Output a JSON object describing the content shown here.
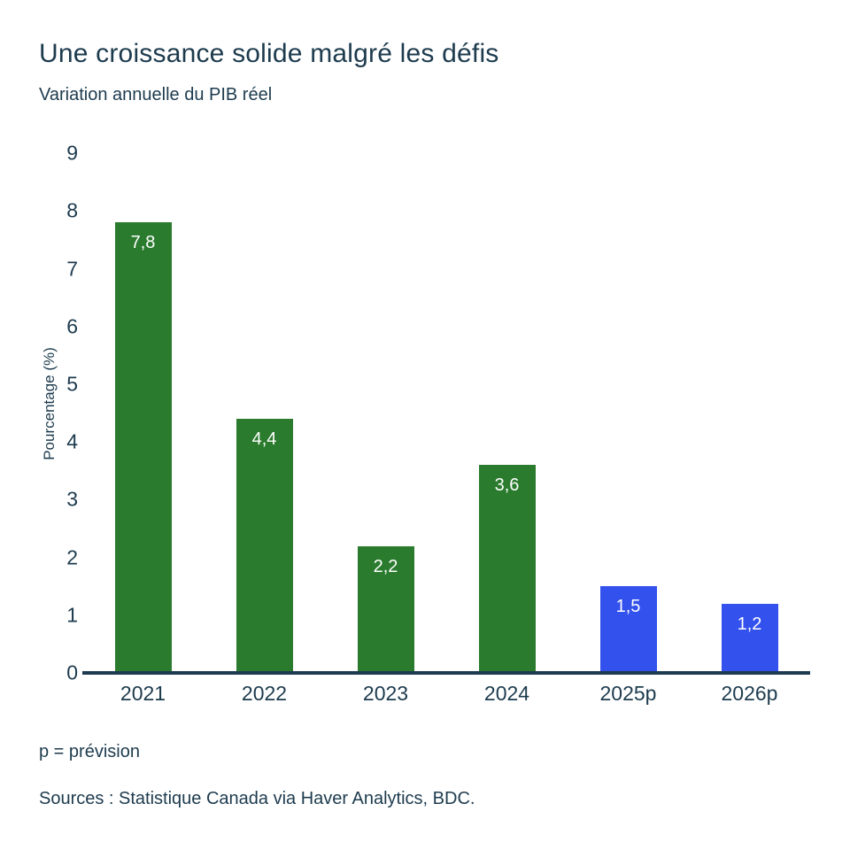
{
  "page": {
    "title": "Une croissance solide malgré les défis",
    "subtitle": "Variation annuelle du PIB réel",
    "footnote": "p = prévision",
    "sources": "Sources : Statistique Canada via Haver Analytics, BDC."
  },
  "chart_data": {
    "type": "bar",
    "title": "Une croissance solide malgré les défis",
    "subtitle": "Variation annuelle du PIB réel",
    "categories": [
      "2021",
      "2022",
      "2023",
      "2024",
      "2025p",
      "2026p"
    ],
    "values": [
      7.8,
      4.4,
      2.2,
      3.6,
      1.5,
      1.2
    ],
    "value_labels": [
      "7,8",
      "4,4",
      "2,2",
      "3,6",
      "1,5",
      "1,2"
    ],
    "series": [
      {
        "name": "Variation annuelle du PIB réel",
        "values": [
          7.8,
          4.4,
          2.2,
          3.6,
          1.5,
          1.2
        ]
      }
    ],
    "is_forecast": [
      false,
      false,
      false,
      false,
      true,
      true
    ],
    "xlabel": "",
    "ylabel": "Pourcentage (%)",
    "ylim": [
      0,
      9
    ],
    "yticks": [
      0,
      1,
      2,
      3,
      4,
      5,
      6,
      7,
      8,
      9
    ],
    "grid": false,
    "legend": "none",
    "colors": {
      "actual_bar": "#2a7b2e",
      "forecast_bar": "#3351ec",
      "axis": "#1d3b4e",
      "text": "#1d3b4e",
      "bar_label_text": "#ffffff",
      "background": "#ffffff"
    }
  }
}
